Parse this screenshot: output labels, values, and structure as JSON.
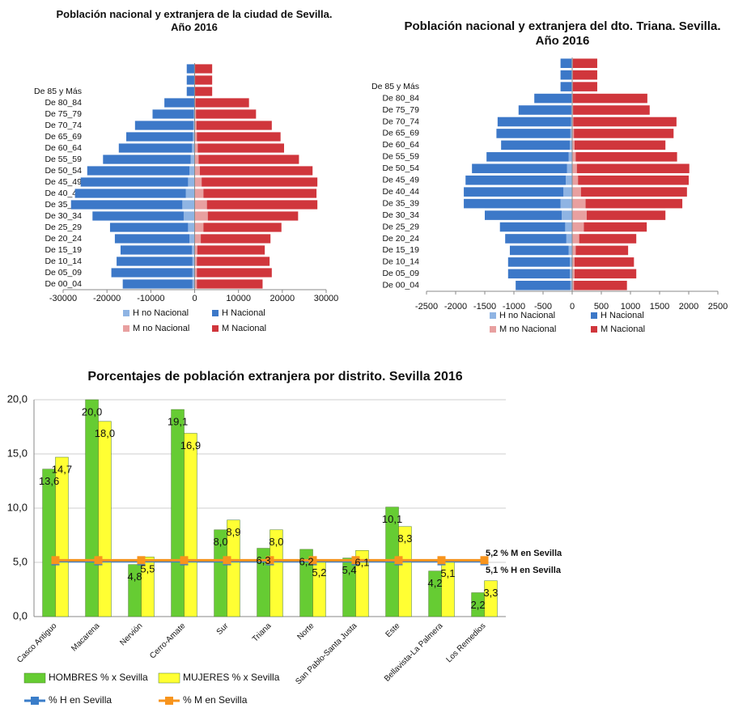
{
  "chart_data": [
    {
      "type": "pyramid",
      "title": "Población nacional y extranjera de la ciudad de Sevilla. Año 2016",
      "categories": [
        "De 00_04",
        "De 05_09",
        "De 10_14",
        "De 15_19",
        "De 20_24",
        "De 25_29",
        "De 30_34",
        "De 35_39",
        "De 40_44",
        "De 45_49",
        "De 50_54",
        "De 55_59",
        "De 60_64",
        "De 65_69",
        "De 70_74",
        "De 75_79",
        "De 80_84",
        "De 85 y Más",
        null,
        null
      ],
      "xlim": [
        -30000,
        30000
      ],
      "xticks": [
        -30000,
        -20000,
        -10000,
        0,
        10000,
        20000,
        30000
      ],
      "series": [
        {
          "name": "H no Nacional",
          "color": "#8fb4e3",
          "values": [
            -500,
            -500,
            -500,
            -600,
            -1200,
            -1500,
            -2500,
            -2800,
            -2000,
            -1500,
            -1200,
            -900,
            -600,
            -400,
            -300,
            -200,
            -100,
            -100,
            -100,
            -100
          ]
        },
        {
          "name": "H Nacional",
          "color": "#3c78c8",
          "values": [
            -15900,
            -18500,
            -17300,
            -16300,
            -17000,
            -17800,
            -20800,
            -25400,
            -25300,
            -24500,
            -23300,
            -20000,
            -16700,
            -15200,
            -13300,
            -9400,
            -6800,
            -1700,
            -1700,
            -1700
          ]
        },
        {
          "name": "M no Nacional",
          "color": "#e8a0a0",
          "values": [
            500,
            500,
            500,
            600,
            1400,
            2000,
            3000,
            2800,
            2000,
            1600,
            1200,
            900,
            700,
            500,
            400,
            300,
            200,
            100,
            100,
            100
          ]
        },
        {
          "name": "M Nacional",
          "color": "#d0363c",
          "values": [
            15000,
            17100,
            16600,
            15400,
            15900,
            17800,
            20600,
            25200,
            25800,
            26400,
            25700,
            22900,
            19700,
            19100,
            17200,
            13700,
            12200,
            3900,
            3900,
            3900
          ]
        }
      ]
    },
    {
      "type": "pyramid",
      "title": "Población nacional y extranjera del dto. Triana. Sevilla. Año 2016",
      "categories": [
        "De 00_04",
        "De 05_09",
        "De 10_14",
        "De 15_19",
        "De 20_24",
        "De 25_29",
        "De 30_34",
        "De 35_39",
        "De 40_44",
        "De 45_49",
        "De 50_54",
        "De 55_59",
        "De 60_64",
        "De 65_69",
        "De 70_74",
        "De 75_79",
        "De 80_84",
        "De 85 y Más",
        null,
        null
      ],
      "xlim": [
        -2500,
        2500
      ],
      "xticks": [
        -2500,
        -2000,
        -1500,
        -1000,
        -500,
        0,
        500,
        1000,
        1500,
        2000,
        2500
      ],
      "series": [
        {
          "name": "H no Nacional",
          "color": "#8fb4e3",
          "values": [
            -30,
            -40,
            -40,
            -60,
            -100,
            -120,
            -180,
            -200,
            -150,
            -110,
            -90,
            -60,
            -40,
            -30,
            -20,
            -15,
            -10,
            -10,
            -10,
            -10
          ]
        },
        {
          "name": "H Nacional",
          "color": "#3c78c8",
          "values": [
            -940,
            -1060,
            -1060,
            -1010,
            -1050,
            -1120,
            -1320,
            -1660,
            -1710,
            -1720,
            -1630,
            -1410,
            -1180,
            -1270,
            -1260,
            -905,
            -640,
            -190,
            -190,
            -190
          ]
        },
        {
          "name": "M no Nacional",
          "color": "#e8a0a0",
          "values": [
            30,
            40,
            40,
            60,
            120,
            200,
            250,
            230,
            150,
            100,
            80,
            60,
            40,
            30,
            20,
            15,
            10,
            10,
            10,
            10
          ]
        },
        {
          "name": "M Nacional",
          "color": "#d0363c",
          "values": [
            910,
            1060,
            1020,
            900,
            980,
            1080,
            1350,
            1660,
            1820,
            1900,
            1930,
            1740,
            1560,
            1710,
            1770,
            1315,
            1280,
            420,
            420,
            420
          ]
        }
      ]
    },
    {
      "type": "bar",
      "title": "Porcentajes de población extranjera por distrito. Sevilla 2016",
      "categories": [
        "Casco Antiguo",
        "Macarena",
        "Nervión",
        "Cerro-Amate",
        "Sur",
        "Triana",
        "Norte",
        "San Pablo-Santa Justa",
        "Este",
        "Bellavista-La Palmera",
        "Los Remedios"
      ],
      "ylim": [
        0,
        20
      ],
      "yticks": [
        {
          "value": 0,
          "label": "0,0"
        },
        {
          "value": 5,
          "label": "5,0"
        },
        {
          "value": 10,
          "label": "10,0"
        },
        {
          "value": 15,
          "label": "15,0"
        },
        {
          "value": 20,
          "label": "20,0"
        }
      ],
      "grid": true,
      "series": [
        {
          "name": "HOMBRES % x Sevilla",
          "type": "bar",
          "color": "#66cc33",
          "values": [
            13.6,
            20.0,
            4.8,
            19.1,
            8.0,
            6.3,
            6.2,
            5.4,
            10.1,
            4.2,
            2.2
          ],
          "value_labels": [
            "13,6",
            "20,0",
            "4,8",
            "19,1",
            "8,0",
            "6,3",
            "6,2",
            "5,4",
            "10,1",
            "4,2",
            "2,2"
          ]
        },
        {
          "name": "MUJERES % x Sevilla",
          "type": "bar",
          "color": "#ffff33",
          "values": [
            14.7,
            18.0,
            5.5,
            16.9,
            8.9,
            8.0,
            5.2,
            6.1,
            8.3,
            5.1,
            3.3
          ],
          "value_labels": [
            "14,7",
            "18,0",
            "5,5",
            "16,9",
            "8,9",
            "8,0",
            "5,2",
            "6,1",
            "8,3",
            "5,1",
            "3,3"
          ]
        },
        {
          "name": "% H en Sevilla",
          "type": "line",
          "color": "#3a7dc9",
          "values": [
            5.1,
            5.1,
            5.1,
            5.1,
            5.1,
            5.1,
            5.1,
            5.1,
            5.1,
            5.1,
            5.1
          ]
        },
        {
          "name": "% M en Sevilla",
          "type": "line",
          "color": "#f7941d",
          "values": [
            5.2,
            5.2,
            5.2,
            5.2,
            5.2,
            5.2,
            5.2,
            5.2,
            5.2,
            5.2,
            5.2
          ]
        }
      ],
      "annotations": [
        "5,2 % M en Sevilla",
        "5,1 % H en Sevilla"
      ]
    }
  ]
}
